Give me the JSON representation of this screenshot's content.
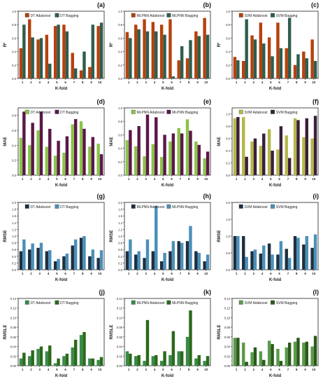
{
  "chart_data": [
    {
      "label": "(a)",
      "type": "bar",
      "ylabel": "R²",
      "xlabel": "K-fold",
      "ylim": [
        0,
        1
      ],
      "yticks": [
        0,
        0.2,
        0.4,
        0.6,
        0.8,
        1.0
      ],
      "categories": [
        "1",
        "2",
        "3",
        "4",
        "5",
        "6",
        "7",
        "8",
        "9",
        "10"
      ],
      "series": [
        {
          "name": "DT Adaboost",
          "color": "#b5410e",
          "values": [
            0.45,
            0.88,
            0.58,
            0.65,
            0.78,
            0.8,
            0.38,
            0.12,
            0.17,
            0.78
          ]
        },
        {
          "name": "DT Bagging",
          "color": "#2e5e4e",
          "values": [
            0.8,
            0.61,
            0.6,
            0.22,
            0.8,
            0.7,
            0.15,
            0.4,
            0.8,
            0.83
          ]
        }
      ]
    },
    {
      "label": "(b)",
      "type": "bar",
      "ylabel": "R²",
      "xlabel": "K-fold",
      "ylim": [
        0,
        1
      ],
      "yticks": [
        0,
        0.2,
        0.4,
        0.6,
        0.8,
        1.0
      ],
      "categories": [
        "1",
        "2",
        "3",
        "4",
        "5",
        "6",
        "7",
        "8",
        "9",
        "10"
      ],
      "series": [
        {
          "name": "MLPNN Adaboost",
          "color": "#b5410e",
          "values": [
            0.69,
            0.8,
            0.88,
            0.84,
            0.8,
            0.88,
            0.27,
            0.3,
            0.7,
            0.9
          ]
        },
        {
          "name": "MLPNN Bagging",
          "color": "#2e5e4e",
          "values": [
            0.6,
            0.73,
            0.7,
            0.7,
            0.65,
            0.03,
            0.48,
            0.57,
            0.63,
            0.65
          ]
        }
      ]
    },
    {
      "label": "(c)",
      "type": "bar",
      "ylabel": "R²",
      "xlabel": "K-fold",
      "ylim": [
        0,
        1
      ],
      "yticks": [
        0,
        0.2,
        0.4,
        0.6,
        0.8,
        1.0
      ],
      "categories": [
        "1",
        "2",
        "3",
        "4",
        "5",
        "6",
        "7",
        "8",
        "9",
        "10"
      ],
      "series": [
        {
          "name": "SVM Adaboost",
          "color": "#b5410e",
          "values": [
            0.32,
            0.26,
            0.64,
            0.83,
            0.61,
            0.83,
            0.45,
            0.2,
            0.4,
            0.58
          ]
        },
        {
          "name": "SVM Bagging",
          "color": "#2e5e4e",
          "values": [
            0.27,
            0.88,
            0.58,
            0.52,
            0.33,
            0.45,
            0.9,
            0.36,
            0.3,
            0.26
          ]
        }
      ]
    },
    {
      "label": "(d)",
      "type": "bar",
      "ylabel": "MAE",
      "xlabel": "K-fold",
      "ylim": [
        0,
        0.9
      ],
      "yticks": [
        0,
        0.2,
        0.4,
        0.6,
        0.8
      ],
      "categories": [
        "1",
        "2",
        "3",
        "4",
        "5",
        "6",
        "7",
        "8",
        "9",
        "10"
      ],
      "series": [
        {
          "name": "DT Adaboost",
          "color": "#8bc34a",
          "values": [
            0.5,
            0.4,
            0.6,
            0.38,
            0.26,
            0.3,
            0.68,
            0.72,
            0.38,
            0.42
          ]
        },
        {
          "name": "DT Bagging",
          "color": "#5a1848",
          "values": [
            0.85,
            0.7,
            0.85,
            0.62,
            0.46,
            0.52,
            0.75,
            0.62,
            0.51,
            0.28
          ]
        }
      ]
    },
    {
      "label": "(e)",
      "type": "bar",
      "ylabel": "MAE",
      "xlabel": "K-fold",
      "ylim": [
        0,
        1
      ],
      "yticks": [
        0,
        0.2,
        0.4,
        0.6,
        0.8,
        1.0
      ],
      "categories": [
        "1",
        "2",
        "3",
        "4",
        "5",
        "6",
        "7",
        "8",
        "9",
        "10"
      ],
      "series": [
        {
          "name": "MLPNN Adaboost",
          "color": "#8bc34a",
          "values": [
            0.52,
            0.43,
            0.28,
            0.46,
            0.27,
            0.5,
            0.7,
            0.83,
            0.5,
            0.25
          ]
        },
        {
          "name": "MLPNN Bagging",
          "color": "#5a1848",
          "values": [
            0.67,
            0.73,
            0.9,
            0.86,
            0.6,
            0.62,
            0.62,
            0.66,
            0.45,
            0.35
          ]
        }
      ]
    },
    {
      "label": "(f)",
      "type": "bar",
      "ylabel": "MAE",
      "xlabel": "K-fold",
      "ylim": [
        0,
        1.1
      ],
      "yticks": [
        0,
        0.2,
        0.4,
        0.6,
        0.8,
        1.0
      ],
      "categories": [
        "1",
        "2",
        "3",
        "4",
        "5",
        "6",
        "7",
        "8",
        "9",
        "10"
      ],
      "series": [
        {
          "name": "SVM Adaboost",
          "color": "#b5b84a",
          "values": [
            0.93,
            0.95,
            0.55,
            0.48,
            0.75,
            0.42,
            0.65,
            0.93,
            0.62,
            0.6
          ]
        },
        {
          "name": "SVM Bagging",
          "color": "#3a1f3a",
          "values": [
            0.95,
            0.3,
            0.6,
            0.68,
            0.4,
            0.8,
            0.28,
            0.9,
            0.93,
            0.97
          ]
        }
      ]
    },
    {
      "label": "(g)",
      "type": "bar",
      "ylabel": "RMSE",
      "xlabel": "K-fold",
      "ylim": [
        0,
        2.0
      ],
      "yticks": [
        0,
        0.2,
        0.4,
        0.6,
        0.8,
        1.0,
        1.2,
        1.4,
        1.6,
        1.8,
        2.0
      ],
      "categories": [
        "1",
        "2",
        "3",
        "4",
        "5",
        "6",
        "7",
        "8",
        "9",
        "10"
      ],
      "series": [
        {
          "name": "DT Adaboost",
          "color": "#1f2f3f",
          "values": [
            0.55,
            0.6,
            0.65,
            0.55,
            0.25,
            0.4,
            0.72,
            0.95,
            0.4,
            0.35
          ]
        },
        {
          "name": "DT Bagging",
          "color": "#4a90b8",
          "values": [
            0.9,
            0.78,
            0.8,
            0.58,
            0.32,
            0.48,
            0.9,
            1.0,
            0.6,
            0.58
          ]
        }
      ]
    },
    {
      "label": "(h)",
      "type": "bar",
      "ylabel": "RMSE",
      "xlabel": "K-fold",
      "ylim": [
        0,
        2.0
      ],
      "yticks": [
        0,
        0.2,
        0.4,
        0.6,
        0.8,
        1.0,
        1.2,
        1.4,
        1.6,
        1.8,
        2.0
      ],
      "categories": [
        "1",
        "2",
        "3",
        "4",
        "5",
        "6",
        "7",
        "8",
        "9",
        "10"
      ],
      "series": [
        {
          "name": "MLPNN Adaboost",
          "color": "#1f2f3f",
          "values": [
            0.55,
            0.45,
            0.35,
            0.55,
            0.25,
            0.55,
            0.85,
            0.85,
            0.55,
            0.25
          ]
        },
        {
          "name": "MLPNN Bagging",
          "color": "#4a90b8",
          "values": [
            0.9,
            0.55,
            0.9,
            1.9,
            0.5,
            0.85,
            0.8,
            1.3,
            0.5,
            0.45
          ]
        }
      ]
    },
    {
      "label": "(i)",
      "type": "bar",
      "ylabel": "RMSE",
      "xlabel": "K-fold",
      "ylim": [
        0,
        2.0
      ],
      "yticks": [
        0,
        0.5,
        1.0,
        1.5,
        2.0
      ],
      "categories": [
        "1",
        "2",
        "3",
        "4",
        "5",
        "6",
        "7",
        "8",
        "9",
        "10"
      ],
      "series": [
        {
          "name": "SVM Adaboost",
          "color": "#1f2f3f",
          "values": [
            1.0,
            1.0,
            0.55,
            0.48,
            0.78,
            0.45,
            0.62,
            1.0,
            0.75,
            0.65
          ]
        },
        {
          "name": "SVM Bagging",
          "color": "#4a90b8",
          "values": [
            1.0,
            0.38,
            0.6,
            0.72,
            0.45,
            0.85,
            0.35,
            0.95,
            1.0,
            1.05
          ]
        }
      ]
    },
    {
      "label": "(j)",
      "type": "bar",
      "ylabel": "RMSLE",
      "xlabel": "K-fold",
      "ylim": [
        0,
        0.14
      ],
      "yticks": [
        0,
        0.02,
        0.04,
        0.06,
        0.08,
        0.1,
        0.12,
        0.14
      ],
      "categories": [
        "1",
        "2",
        "3",
        "4",
        "5",
        "6",
        "7",
        "8",
        "9",
        "10"
      ],
      "series": [
        {
          "name": "DT Adaboost",
          "color": "#3a8a4a",
          "values": [
            0.015,
            0.02,
            0.035,
            0.03,
            0.005,
            0.02,
            0.038,
            0.064,
            0.015,
            0.012
          ]
        },
        {
          "name": "DT Bagging",
          "color": "#2a6a1a",
          "values": [
            0.027,
            0.032,
            0.04,
            0.042,
            0.015,
            0.025,
            0.054,
            0.07,
            0.015,
            0.018
          ]
        }
      ]
    },
    {
      "label": "(k)",
      "type": "bar",
      "ylabel": "RMSLE",
      "xlabel": "K-fold",
      "ylim": [
        0,
        0.14
      ],
      "yticks": [
        0,
        0.02,
        0.04,
        0.06,
        0.08,
        0.1,
        0.12,
        0.14
      ],
      "categories": [
        "1",
        "2",
        "3",
        "4",
        "5",
        "6",
        "7",
        "8",
        "9",
        "10"
      ],
      "series": [
        {
          "name": "MLPNN Adaboost",
          "color": "#3a8a4a",
          "values": [
            0.03,
            0.02,
            0.01,
            0.02,
            0.01,
            0.022,
            0.03,
            0.06,
            0.015,
            0.01
          ]
        },
        {
          "name": "MLPNN Bagging",
          "color": "#2a6a1a",
          "values": [
            0.025,
            0.022,
            0.095,
            0.022,
            0.03,
            0.072,
            0.03,
            0.115,
            0.022,
            0.02
          ]
        }
      ]
    },
    {
      "label": "(l)",
      "type": "bar",
      "ylabel": "RMSLE",
      "xlabel": "K-fold",
      "ylim": [
        0,
        0.14
      ],
      "yticks": [
        0,
        0.02,
        0.04,
        0.06,
        0.08,
        0.1,
        0.12,
        0.14
      ],
      "categories": [
        "1",
        "2",
        "3",
        "4",
        "5",
        "6",
        "7",
        "8",
        "9",
        "10"
      ],
      "series": [
        {
          "name": "SVM Adaboost",
          "color": "#5a9a4a",
          "values": [
            0.058,
            0.048,
            0.028,
            0.03,
            0.052,
            0.035,
            0.038,
            0.05,
            0.048,
            0.04
          ]
        },
        {
          "name": "SVM Bagging",
          "color": "#2a5a1a",
          "values": [
            0.058,
            0.008,
            0.038,
            0.012,
            0.045,
            0.01,
            0.048,
            0.058,
            0.05,
            0.062
          ]
        }
      ]
    }
  ]
}
